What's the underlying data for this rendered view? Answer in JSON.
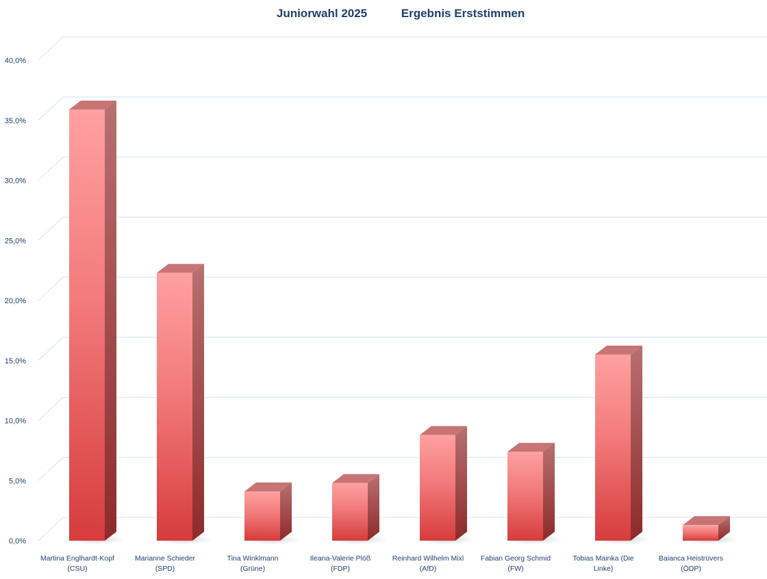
{
  "chart_data": {
    "type": "bar",
    "title": "Juniorwahl 2025",
    "subtitle": "Ergebnis Erststimmen",
    "categories": [
      [
        "Martina Englhardt-Kopf",
        "(CSU)"
      ],
      [
        "Marianne Schieder",
        "(SPD)"
      ],
      [
        "Tina Winklmann",
        "(Grüne)"
      ],
      [
        "Ileana-Valerie Plöß",
        "(FDP)"
      ],
      [
        "Reinhard Wilhelm Mixl",
        "(AfD)"
      ],
      [
        "Fabian Georg Schmid",
        "(FW)"
      ],
      [
        "Tobias Mainka (Die",
        "Linke)"
      ],
      [
        "Baianca Heistrüvers",
        "(ÖDP)"
      ]
    ],
    "values": [
      35.9,
      22.3,
      4.1,
      4.8,
      8.8,
      7.4,
      15.5,
      1.3
    ],
    "ylim": [
      0,
      40
    ],
    "ytick_step": 5,
    "ytick_labels": [
      "0,0%",
      "5,0%",
      "10,0%",
      "15,0%",
      "20,0%",
      "25,0%",
      "30,0%",
      "35,0%",
      "40,0%"
    ],
    "grid": true,
    "legend": "none",
    "colors": {
      "bar_light": "#ffa0a0",
      "bar_dark": "#d63c3c",
      "bar_side_top": "#b87070",
      "bar_side_bottom": "#8e2a2a",
      "bar_top_face": "#c87474",
      "grid": "#d4e4f2",
      "text": "#1f3e6e"
    }
  }
}
